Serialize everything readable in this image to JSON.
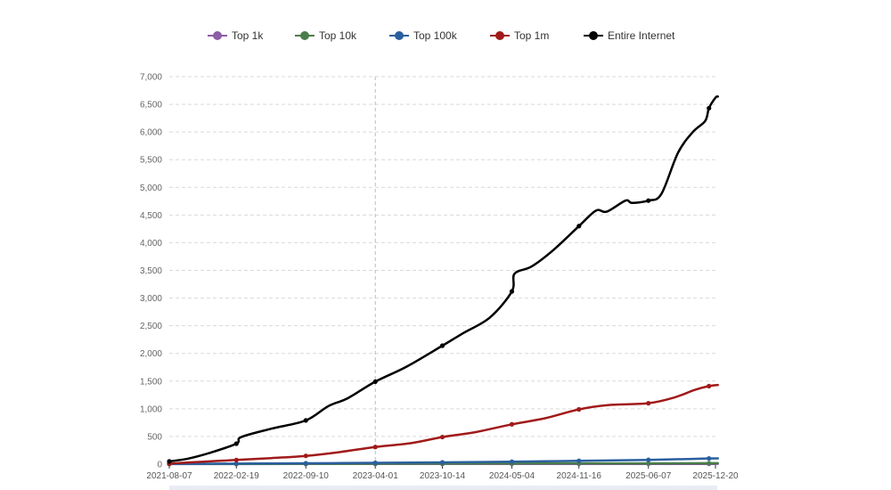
{
  "chart_data": {
    "type": "line",
    "title": "",
    "xlabel": "",
    "ylabel": "",
    "ylim": [
      0,
      7000
    ],
    "y_ticks": [
      0,
      500,
      1000,
      1500,
      2000,
      2500,
      3000,
      3500,
      4000,
      4500,
      5000,
      5500,
      6000,
      6500,
      7000
    ],
    "y_tick_labels": [
      "0",
      "500",
      "1,000",
      "1,500",
      "2,000",
      "2,500",
      "3,000",
      "3,500",
      "4,000",
      "4,500",
      "5,000",
      "5,500",
      "6,000",
      "6,500",
      "7,000"
    ],
    "x_ticks": [
      "2021-08-07",
      "2022-02-19",
      "2022-09-10",
      "2023-04-01",
      "2023-10-14",
      "2024-05-04",
      "2024-11-16",
      "2025-06-07",
      "2025-12-20"
    ],
    "x_range": [
      "2021-08-07",
      "2025-12-20"
    ],
    "crosshair_date": "2023-04-01",
    "grid": true,
    "legend_position": "top-center",
    "series": [
      {
        "name": "Top 1k",
        "color": "#8e5ca8",
        "points": [
          [
            "2021-08-07",
            2
          ],
          [
            "2022-08-01",
            3
          ],
          [
            "2023-08-01",
            4
          ],
          [
            "2024-08-01",
            5
          ],
          [
            "2025-12-27",
            6
          ]
        ],
        "markers": [
          "2021-08-07",
          "2022-02-19",
          "2022-09-10",
          "2023-04-01",
          "2023-10-14",
          "2024-05-04",
          "2024-11-16",
          "2025-06-07",
          "2025-12-01"
        ]
      },
      {
        "name": "Top 10k",
        "color": "#4a7d4a",
        "points": [
          [
            "2021-08-07",
            3
          ],
          [
            "2022-06-01",
            5
          ],
          [
            "2023-04-01",
            8
          ],
          [
            "2024-03-01",
            11
          ],
          [
            "2025-01-01",
            14
          ],
          [
            "2025-12-27",
            17
          ]
        ],
        "markers": [
          "2021-08-07",
          "2022-02-19",
          "2022-09-10",
          "2023-04-01",
          "2023-10-14",
          "2024-05-04",
          "2024-11-16",
          "2025-06-07",
          "2025-12-01"
        ]
      },
      {
        "name": "Top 100k",
        "color": "#2a5f9e",
        "points": [
          [
            "2021-08-07",
            5
          ],
          [
            "2022-02-19",
            10
          ],
          [
            "2022-09-10",
            16
          ],
          [
            "2023-04-01",
            24
          ],
          [
            "2023-10-14",
            32
          ],
          [
            "2024-05-04",
            45
          ],
          [
            "2024-11-16",
            60
          ],
          [
            "2025-06-07",
            78
          ],
          [
            "2025-10-15",
            95
          ],
          [
            "2025-12-01",
            103
          ],
          [
            "2025-12-27",
            104
          ]
        ],
        "markers": [
          "2021-08-07",
          "2022-02-19",
          "2022-09-10",
          "2023-04-01",
          "2023-10-14",
          "2024-05-04",
          "2024-11-16",
          "2025-06-07",
          "2025-12-01"
        ]
      },
      {
        "name": "Top 1m",
        "color": "#a11a1a",
        "points": [
          [
            "2021-08-07",
            10
          ],
          [
            "2021-11-15",
            45
          ],
          [
            "2022-02-19",
            75
          ],
          [
            "2022-06-01",
            110
          ],
          [
            "2022-09-10",
            150
          ],
          [
            "2022-12-15",
            215
          ],
          [
            "2023-04-01",
            310
          ],
          [
            "2023-07-15",
            380
          ],
          [
            "2023-10-14",
            490
          ],
          [
            "2024-01-20",
            580
          ],
          [
            "2024-05-04",
            720
          ],
          [
            "2024-08-10",
            830
          ],
          [
            "2024-11-16",
            990
          ],
          [
            "2025-02-15",
            1070
          ],
          [
            "2025-06-07",
            1100
          ],
          [
            "2025-08-20",
            1200
          ],
          [
            "2025-10-20",
            1340
          ],
          [
            "2025-12-01",
            1410
          ],
          [
            "2025-12-27",
            1430
          ]
        ],
        "markers": [
          "2021-08-07",
          "2022-02-19",
          "2022-09-10",
          "2023-04-01",
          "2023-10-14",
          "2024-05-04",
          "2024-11-16",
          "2025-06-07",
          "2025-12-01"
        ]
      },
      {
        "name": "Entire Internet",
        "color": "#000000",
        "points": [
          [
            "2021-08-07",
            50
          ],
          [
            "2021-10-01",
            100
          ],
          [
            "2021-12-01",
            200
          ],
          [
            "2022-02-19",
            370
          ],
          [
            "2022-03-05",
            490
          ],
          [
            "2022-06-01",
            640
          ],
          [
            "2022-09-10",
            790
          ],
          [
            "2022-11-15",
            1050
          ],
          [
            "2023-01-10",
            1190
          ],
          [
            "2023-04-01",
            1490
          ],
          [
            "2023-07-01",
            1760
          ],
          [
            "2023-10-14",
            2140
          ],
          [
            "2023-12-15",
            2370
          ],
          [
            "2024-03-01",
            2650
          ],
          [
            "2024-05-04",
            3120
          ],
          [
            "2024-05-12",
            3440
          ],
          [
            "2024-07-01",
            3570
          ],
          [
            "2024-09-01",
            3860
          ],
          [
            "2024-11-16",
            4300
          ],
          [
            "2025-01-05",
            4580
          ],
          [
            "2025-02-05",
            4560
          ],
          [
            "2025-04-01",
            4760
          ],
          [
            "2025-04-20",
            4720
          ],
          [
            "2025-06-07",
            4760
          ],
          [
            "2025-07-15",
            4880
          ],
          [
            "2025-09-01",
            5620
          ],
          [
            "2025-10-15",
            6000
          ],
          [
            "2025-11-20",
            6200
          ],
          [
            "2025-12-01",
            6430
          ],
          [
            "2025-12-20",
            6620
          ],
          [
            "2025-12-27",
            6640
          ]
        ],
        "markers": [
          "2021-08-07",
          "2022-02-19",
          "2022-09-10",
          "2023-04-01",
          "2023-10-14",
          "2024-05-04",
          "2024-11-16",
          "2025-06-07",
          "2025-12-01"
        ]
      }
    ]
  }
}
